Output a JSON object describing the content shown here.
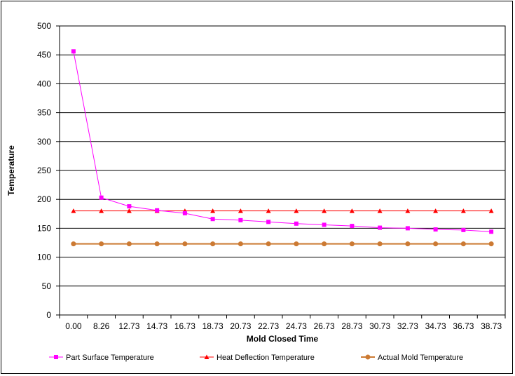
{
  "chart_data": {
    "type": "line",
    "xlabel": "Mold Closed Time",
    "ylabel": "Temperature",
    "categories": [
      "0.00",
      "8.26",
      "12.73",
      "14.73",
      "16.73",
      "18.73",
      "20.73",
      "22.73",
      "24.73",
      "26.73",
      "28.73",
      "30.73",
      "32.73",
      "34.73",
      "36.73",
      "38.73"
    ],
    "ylim": [
      0,
      500
    ],
    "yticks": [
      "0",
      "50",
      "100",
      "150",
      "200",
      "250",
      "300",
      "350",
      "400",
      "450",
      "500"
    ],
    "grid": "horizontal",
    "legend": "bottom",
    "series": [
      {
        "name": "Part Surface Temperature",
        "color": "#ff00ff",
        "marker": "square",
        "values": [
          456,
          203,
          188,
          181,
          176,
          166,
          164,
          161,
          158,
          156,
          154,
          151,
          150,
          148,
          147,
          144
        ]
      },
      {
        "name": "Heat Deflection Temperature",
        "color": "#ff0000",
        "marker": "triangle",
        "values": [
          180,
          180,
          180,
          180,
          180,
          180,
          180,
          180,
          180,
          180,
          180,
          180,
          180,
          180,
          180,
          180
        ]
      },
      {
        "name": "Actual Mold Temperature",
        "color": "#cc7a33",
        "marker": "circle",
        "values": [
          123,
          123,
          123,
          123,
          123,
          123,
          123,
          123,
          123,
          123,
          123,
          123,
          123,
          123,
          123,
          123
        ]
      }
    ]
  }
}
